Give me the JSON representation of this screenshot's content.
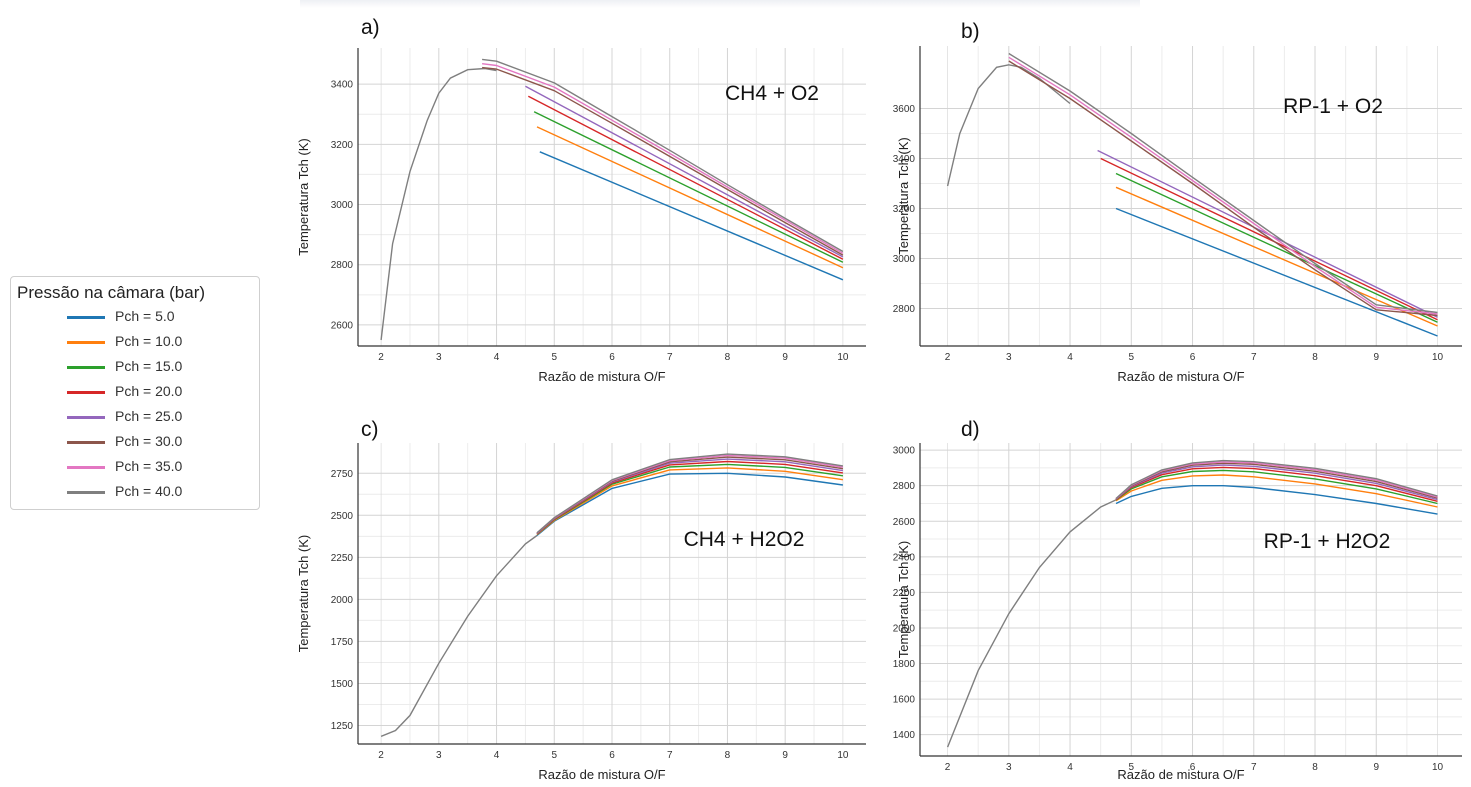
{
  "legend": {
    "title": "Pressão na câmara (bar)",
    "items": [
      {
        "label": "Pch = 5.0",
        "color": "#1f77b4"
      },
      {
        "label": "Pch = 10.0",
        "color": "#ff7f0e"
      },
      {
        "label": "Pch = 15.0",
        "color": "#2ca02c"
      },
      {
        "label": "Pch = 20.0",
        "color": "#d62728"
      },
      {
        "label": "Pch = 25.0",
        "color": "#9467bd"
      },
      {
        "label": "Pch = 30.0",
        "color": "#8c564b"
      },
      {
        "label": "Pch = 35.0",
        "color": "#e377c2"
      },
      {
        "label": "Pch = 40.0",
        "color": "#7f7f7f"
      }
    ]
  },
  "chart_data": [
    {
      "panel_label": "a)",
      "type": "line",
      "title": "CH4 + O2",
      "xlabel": "Razão de mistura O/F",
      "ylabel": "Temperatura Tch (K)",
      "xlim": [
        1.6,
        10.4
      ],
      "ylim": [
        2530,
        3520
      ],
      "xticks": [
        2,
        3,
        4,
        5,
        6,
        7,
        8,
        9,
        10
      ],
      "yticks": [
        2600,
        2800,
        3000,
        3200,
        3400
      ],
      "shared_curve": {
        "x": [
          2.0,
          2.2,
          2.5,
          2.8,
          3.0,
          3.2,
          3.5,
          3.8,
          4.0
        ],
        "y": [
          2550,
          2870,
          3110,
          3280,
          3370,
          3420,
          3448,
          3452,
          3445
        ]
      },
      "series": [
        {
          "name": "Pch = 5.0",
          "x": [
            4.75,
            10.0
          ],
          "y": [
            3175,
            2750
          ]
        },
        {
          "name": "Pch = 10.0",
          "x": [
            4.7,
            10.0
          ],
          "y": [
            3258,
            2790
          ]
        },
        {
          "name": "Pch = 15.0",
          "x": [
            4.65,
            10.0
          ],
          "y": [
            3308,
            2808
          ]
        },
        {
          "name": "Pch = 20.0",
          "x": [
            4.55,
            10.0
          ],
          "y": [
            3360,
            2818
          ]
        },
        {
          "name": "Pch = 25.0",
          "x": [
            4.5,
            10.0
          ],
          "y": [
            3393,
            2826
          ]
        },
        {
          "name": "Pch = 30.0",
          "x": [
            3.75,
            4.0,
            5.0,
            6.0,
            7.0,
            8.0,
            9.0,
            10.0
          ],
          "y": [
            3455,
            3450,
            3378,
            3270,
            3160,
            3050,
            2940,
            2832
          ]
        },
        {
          "name": "Pch = 35.0",
          "x": [
            3.75,
            4.0,
            5.0,
            6.0,
            7.0,
            8.0,
            9.0,
            10.0
          ],
          "y": [
            3468,
            3462,
            3390,
            3280,
            3170,
            3058,
            2948,
            2838
          ]
        },
        {
          "name": "Pch = 40.0",
          "x": [
            3.75,
            4.0,
            5.0,
            6.0,
            7.0,
            8.0,
            9.0,
            10.0
          ],
          "y": [
            3482,
            3476,
            3404,
            3292,
            3180,
            3066,
            2954,
            2844
          ]
        }
      ]
    },
    {
      "panel_label": "b)",
      "type": "line",
      "title": "RP-1 + O2",
      "xlabel": "Razão de mistura O/F",
      "ylabel": "Temperatura Tch (K)",
      "xlim": [
        1.55,
        10.4
      ],
      "ylim": [
        2650,
        3850
      ],
      "xticks": [
        2,
        3,
        4,
        5,
        6,
        7,
        8,
        9,
        10
      ],
      "yticks": [
        2800,
        3000,
        3200,
        3400,
        3600
      ],
      "shared_curve": {
        "x": [
          2.0,
          2.2,
          2.5,
          2.8,
          3.0,
          3.2,
          3.5,
          4.0
        ],
        "y": [
          3290,
          3500,
          3680,
          3765,
          3775,
          3765,
          3720,
          3620
        ]
      },
      "series": [
        {
          "name": "Pch = 5.0",
          "x": [
            4.75,
            10.0
          ],
          "y": [
            3200,
            2690
          ]
        },
        {
          "name": "Pch = 10.0",
          "x": [
            4.75,
            10.0
          ],
          "y": [
            3285,
            2730
          ]
        },
        {
          "name": "Pch = 15.0",
          "x": [
            4.75,
            10.0
          ],
          "y": [
            3340,
            2745
          ]
        },
        {
          "name": "Pch = 20.0",
          "x": [
            4.5,
            10.0
          ],
          "y": [
            3400,
            2755
          ]
        },
        {
          "name": "Pch = 25.0",
          "x": [
            4.45,
            10.0
          ],
          "y": [
            3432,
            2765
          ]
        },
        {
          "name": "Pch = 30.0",
          "x": [
            3.0,
            4.0,
            5.0,
            6.0,
            7.0,
            8.0,
            9.0,
            10.0
          ],
          "y": [
            3790,
            3640,
            3470,
            3300,
            3125,
            2955,
            2795,
            2772
          ]
        },
        {
          "name": "Pch = 35.0",
          "x": [
            3.0,
            4.0,
            5.0,
            6.0,
            7.0,
            8.0,
            9.0,
            10.0
          ],
          "y": [
            3805,
            3655,
            3485,
            3312,
            3140,
            2968,
            2805,
            2778
          ]
        },
        {
          "name": "Pch = 40.0",
          "x": [
            3.0,
            4.0,
            5.0,
            6.0,
            7.0,
            8.0,
            9.0,
            10.0
          ],
          "y": [
            3820,
            3670,
            3500,
            3325,
            3152,
            2980,
            2815,
            2784
          ]
        }
      ]
    },
    {
      "panel_label": "c)",
      "type": "line",
      "title": "CH4 + H2O2",
      "xlabel": "Razão de mistura O/F",
      "ylabel": "Temperatura Tch (K)",
      "xlim": [
        1.6,
        10.4
      ],
      "ylim": [
        1140,
        2930
      ],
      "xticks": [
        2,
        3,
        4,
        5,
        6,
        7,
        8,
        9,
        10
      ],
      "yticks": [
        1250,
        1500,
        1750,
        2000,
        2250,
        2500,
        2750
      ],
      "shared_curve": {
        "x": [
          2.0,
          2.25,
          2.5,
          3.0,
          3.5,
          4.0,
          4.5,
          4.7
        ],
        "y": [
          1185,
          1220,
          1310,
          1620,
          1900,
          2140,
          2330,
          2380
        ]
      },
      "series": [
        {
          "name": "Pch = 5.0",
          "x": [
            4.7,
            5.0,
            6.0,
            7.0,
            8.0,
            9.0,
            10.0
          ],
          "y": [
            2380,
            2465,
            2660,
            2745,
            2750,
            2728,
            2680
          ]
        },
        {
          "name": "Pch = 10.0",
          "x": [
            4.7,
            5.0,
            6.0,
            7.0,
            8.0,
            9.0,
            10.0
          ],
          "y": [
            2385,
            2470,
            2675,
            2770,
            2782,
            2762,
            2712
          ]
        },
        {
          "name": "Pch = 15.0",
          "x": [
            4.7,
            5.0,
            6.0,
            7.0,
            8.0,
            9.0,
            10.0
          ],
          "y": [
            2388,
            2474,
            2685,
            2787,
            2803,
            2785,
            2735
          ]
        },
        {
          "name": "Pch = 20.0",
          "x": [
            4.7,
            5.0,
            6.0,
            7.0,
            8.0,
            9.0,
            10.0
          ],
          "y": [
            2390,
            2477,
            2692,
            2800,
            2820,
            2803,
            2752
          ]
        },
        {
          "name": "Pch = 25.0",
          "x": [
            4.7,
            5.0,
            6.0,
            7.0,
            8.0,
            9.0,
            10.0
          ],
          "y": [
            2392,
            2480,
            2698,
            2810,
            2834,
            2818,
            2766
          ]
        },
        {
          "name": "Pch = 30.0",
          "x": [
            4.7,
            5.0,
            6.0,
            7.0,
            8.0,
            9.0,
            10.0
          ],
          "y": [
            2394,
            2482,
            2703,
            2818,
            2846,
            2830,
            2777
          ]
        },
        {
          "name": "Pch = 35.0",
          "x": [
            4.7,
            5.0,
            6.0,
            7.0,
            8.0,
            9.0,
            10.0
          ],
          "y": [
            2395,
            2484,
            2707,
            2825,
            2856,
            2840,
            2786
          ]
        },
        {
          "name": "Pch = 40.0",
          "x": [
            4.7,
            5.0,
            6.0,
            7.0,
            8.0,
            9.0,
            10.0
          ],
          "y": [
            2396,
            2486,
            2711,
            2831,
            2864,
            2848,
            2794
          ]
        }
      ]
    },
    {
      "panel_label": "d)",
      "type": "line",
      "title": "RP-1 + H2O2",
      "xlabel": "Razão de mistura O/F",
      "ylabel": "Temperatura Tch (K)",
      "xlim": [
        1.55,
        10.4
      ],
      "ylim": [
        1280,
        3040
      ],
      "xticks": [
        2,
        3,
        4,
        5,
        6,
        7,
        8,
        9,
        10
      ],
      "yticks": [
        1400,
        1600,
        1800,
        2000,
        2200,
        2400,
        2600,
        2800,
        3000
      ],
      "shared_curve": {
        "x": [
          2.0,
          2.5,
          3.0,
          3.5,
          4.0,
          4.5,
          4.75
        ],
        "y": [
          1330,
          1760,
          2080,
          2340,
          2540,
          2680,
          2720
        ]
      },
      "series": [
        {
          "name": "Pch = 5.0",
          "x": [
            4.75,
            5.0,
            5.5,
            6.0,
            6.5,
            7.0,
            8.0,
            9.0,
            10.0
          ],
          "y": [
            2700,
            2740,
            2785,
            2800,
            2800,
            2790,
            2750,
            2700,
            2640
          ]
        },
        {
          "name": "Pch = 10.0",
          "x": [
            4.75,
            5.0,
            5.5,
            6.0,
            6.5,
            7.0,
            8.0,
            9.0,
            10.0
          ],
          "y": [
            2715,
            2770,
            2830,
            2855,
            2860,
            2850,
            2810,
            2755,
            2680
          ]
        },
        {
          "name": "Pch = 15.0",
          "x": [
            4.75,
            5.0,
            5.5,
            6.0,
            6.5,
            7.0,
            8.0,
            9.0,
            10.0
          ],
          "y": [
            2720,
            2782,
            2850,
            2880,
            2886,
            2878,
            2838,
            2782,
            2700
          ]
        },
        {
          "name": "Pch = 20.0",
          "x": [
            4.75,
            5.0,
            5.5,
            6.0,
            6.5,
            7.0,
            8.0,
            9.0,
            10.0
          ],
          "y": [
            2722,
            2790,
            2862,
            2895,
            2903,
            2896,
            2856,
            2800,
            2712
          ]
        },
        {
          "name": "Pch = 25.0",
          "x": [
            4.75,
            5.0,
            5.5,
            6.0,
            6.5,
            7.0,
            8.0,
            9.0,
            10.0
          ],
          "y": [
            2724,
            2795,
            2871,
            2906,
            2916,
            2909,
            2870,
            2813,
            2722
          ]
        },
        {
          "name": "Pch = 30.0",
          "x": [
            4.75,
            5.0,
            5.5,
            6.0,
            6.5,
            7.0,
            8.0,
            9.0,
            10.0
          ],
          "y": [
            2726,
            2799,
            2878,
            2915,
            2926,
            2920,
            2881,
            2823,
            2730
          ]
        },
        {
          "name": "Pch = 35.0",
          "x": [
            4.75,
            5.0,
            5.5,
            6.0,
            6.5,
            7.0,
            8.0,
            9.0,
            10.0
          ],
          "y": [
            2727,
            2802,
            2884,
            2922,
            2934,
            2928,
            2890,
            2832,
            2736
          ]
        },
        {
          "name": "Pch = 40.0",
          "x": [
            4.75,
            5.0,
            5.5,
            6.0,
            6.5,
            7.0,
            8.0,
            9.0,
            10.0
          ],
          "y": [
            2728,
            2805,
            2889,
            2928,
            2941,
            2935,
            2898,
            2839,
            2742
          ]
        }
      ]
    }
  ]
}
